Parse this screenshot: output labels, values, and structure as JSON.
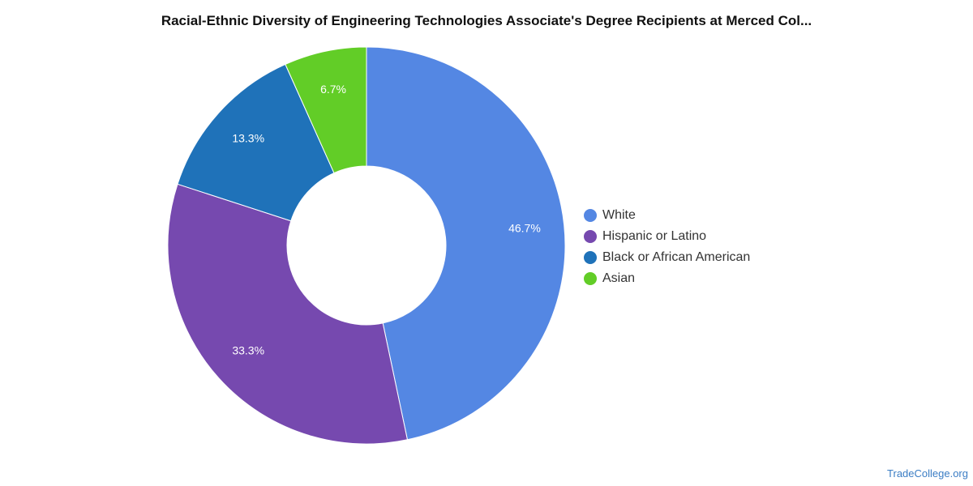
{
  "chart_data": {
    "type": "pie",
    "title": "Racial-Ethnic Diversity of Engineering Technologies Associate's Degree Recipients at Merced Col...",
    "donut": true,
    "legend_position": "right",
    "slices": [
      {
        "name": "White",
        "value": 46.7,
        "label": "46.7%",
        "color": "#5487e3"
      },
      {
        "name": "Hispanic or Latino",
        "value": 33.3,
        "label": "33.3%",
        "color": "#7649af"
      },
      {
        "name": "Black or African American",
        "value": 13.3,
        "label": "13.3%",
        "color": "#1f72b9"
      },
      {
        "name": "Asian",
        "value": 6.7,
        "label": "6.7%",
        "color": "#62cd27"
      }
    ]
  },
  "source": {
    "text": "TradeCollege.org"
  }
}
